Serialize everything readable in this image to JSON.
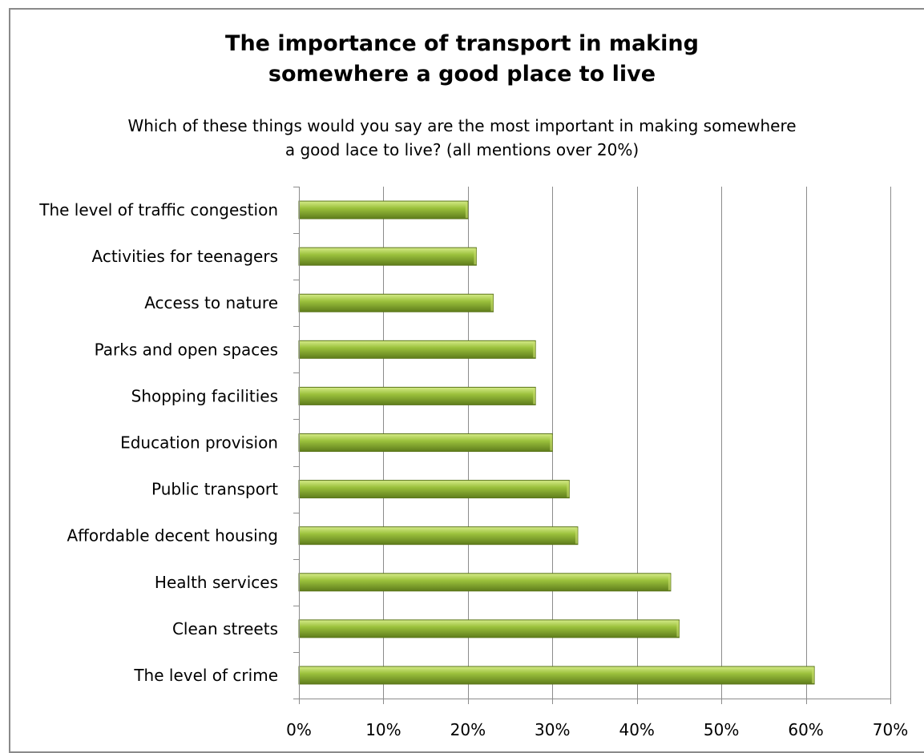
{
  "chart": {
    "title_line1": "The importance of transport in making",
    "title_line2": "somewhere a good place to live",
    "subtitle_line1": "Which of these things would you say are the most important in making somewhere",
    "subtitle_line2": "a good lace to live? (all mentions over 20%)"
  },
  "colors": {
    "bar_fill_light": "#d6ec8a",
    "bar_fill_mid": "#9bc13c",
    "bar_fill_dark": "#5f7d1c",
    "gridline": "#8c8c8c"
  },
  "chart_data": {
    "type": "bar",
    "orientation": "horizontal",
    "title": "The importance of transport in making somewhere a good place to live",
    "subtitle": "Which of these things would you say are the most important in making somewhere a good lace to live? (all mentions over 20%)",
    "categories": [
      "The level of traffic congestion",
      "Activities for teenagers",
      "Access to nature",
      "Parks and open spaces",
      "Shopping facilities",
      "Education provision",
      "Public transport",
      "Affordable decent housing",
      "Health services",
      "Clean streets",
      "The level of crime"
    ],
    "values": [
      20,
      21,
      23,
      28,
      28,
      30,
      32,
      33,
      44,
      45,
      61
    ],
    "xlim": [
      0,
      70
    ],
    "xticks": [
      0,
      10,
      20,
      30,
      40,
      50,
      60,
      70
    ],
    "tick_labels": [
      "0%",
      "10%",
      "20%",
      "30%",
      "40%",
      "50%",
      "60%",
      "70%"
    ],
    "grid": "vertical major gridlines",
    "legend": "none"
  }
}
